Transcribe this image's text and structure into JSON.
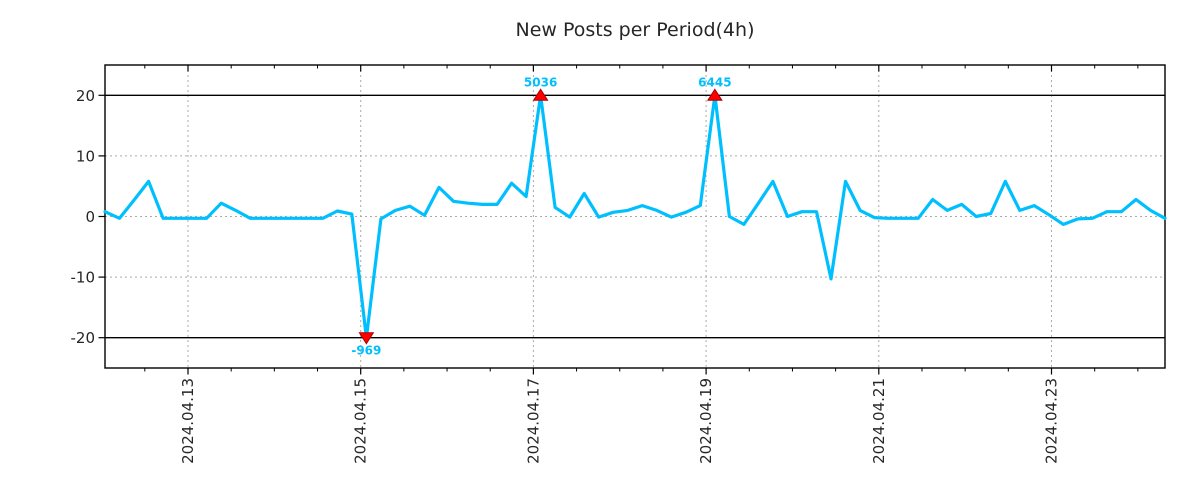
{
  "title": "New Posts per Period(4h)",
  "chart_data": {
    "type": "line",
    "title": "New Posts per Period(4h)",
    "period_hours": 4,
    "x_tick_labels": [
      "2024.04.13",
      "2024.04.15",
      "2024.04.17",
      "2024.04.19",
      "2024.04.21",
      "2024.04.23"
    ],
    "y_tick_labels": [
      "20",
      "10",
      "0",
      "-10",
      "-20"
    ],
    "y_tick_values": [
      20,
      10,
      0,
      -10,
      -20
    ],
    "ylim": [
      -25,
      25
    ],
    "clip_level": 20,
    "grid": "dashed gray vertical lines at each date tick; dashed gray horizontal at 10/0/-10; solid black horizontal threshold lines at +20 and -20",
    "legend": "none",
    "values": [
      0.8,
      -0.3,
      2.7,
      5.8,
      -0.3,
      -0.3,
      -0.3,
      -0.3,
      2.2,
      1.0,
      -0.3,
      -0.3,
      -0.3,
      -0.3,
      -0.3,
      -0.3,
      0.9,
      0.4,
      -20,
      -0.4,
      1.0,
      1.7,
      0.2,
      4.8,
      2.5,
      2.2,
      2.0,
      2.0,
      5.5,
      3.3,
      20,
      1.5,
      -0.1,
      3.8,
      -0.1,
      0.7,
      1.0,
      1.8,
      1.0,
      -0.1,
      0.7,
      1.8,
      20,
      0.0,
      -1.3,
      2.2,
      5.8,
      0.0,
      0.8,
      0.8,
      -10.3,
      5.8,
      1.0,
      -0.2,
      -0.3,
      -0.3,
      -0.3,
      2.8,
      1.0,
      2.0,
      0.0,
      0.5,
      5.8,
      1.0,
      1.8,
      0.3,
      -1.3,
      -0.4,
      -0.3,
      0.8,
      0.8,
      2.8,
      1.0,
      -0.3
    ],
    "annotations": [
      {
        "index": 18,
        "label": "-969",
        "marker": "triangle-down",
        "value_display": -20
      },
      {
        "index": 30,
        "label": "5036",
        "marker": "triangle-up",
        "value_display": 20
      },
      {
        "index": 42,
        "label": "6445",
        "marker": "triangle-up",
        "value_display": 20
      }
    ],
    "colors": {
      "line": "#00BFFF",
      "annotation_text": "#00BFFF",
      "marker_fill": "#FF0000",
      "marker_edge": "#B00000",
      "grid": "#AAAAAA",
      "threshold": "#000000",
      "frame": "#000000",
      "text": "#262626",
      "background": "#FFFFFF"
    }
  }
}
